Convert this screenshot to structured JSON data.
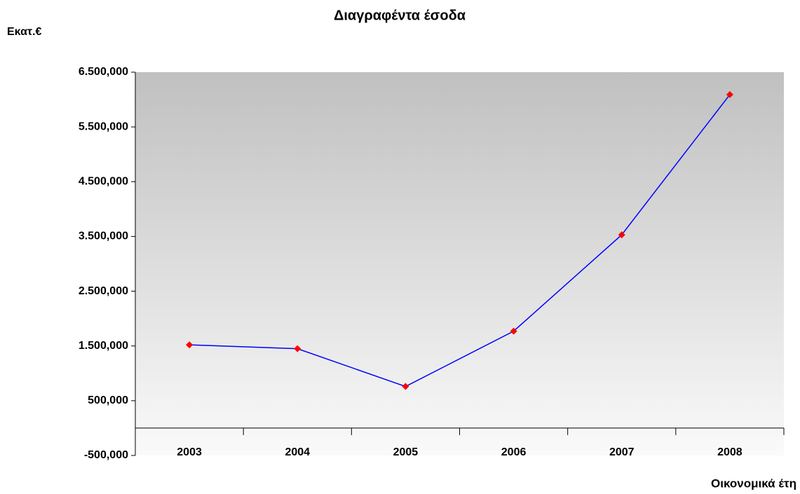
{
  "chart_data": {
    "type": "line",
    "title": "Διαγραφέντα έσοδα",
    "y_label": "Εκατ.€",
    "x_label": "Οικονομικά έτη",
    "categories": [
      "2003",
      "2004",
      "2005",
      "2006",
      "2007",
      "2008"
    ],
    "series": [
      {
        "name": "Διαγραφέντα έσοδα",
        "color": "#0000ff",
        "marker_color": "#ff0000",
        "values": [
          1520000,
          1450000,
          760000,
          1770000,
          3530000,
          6090000
        ]
      }
    ],
    "ylim": [
      -500000,
      6500000
    ],
    "yticks": [
      {
        "value": -500000,
        "label": "-500,000"
      },
      {
        "value": 500000,
        "label": "500,000"
      },
      {
        "value": 1500000,
        "label": "1.500,000"
      },
      {
        "value": 2500000,
        "label": "2.500,000"
      },
      {
        "value": 3500000,
        "label": "3.500,000"
      },
      {
        "value": 4500000,
        "label": "4.500,000"
      },
      {
        "value": 5500000,
        "label": "5.500,000"
      },
      {
        "value": 6500000,
        "label": "6.500,000"
      }
    ],
    "grid": false
  }
}
